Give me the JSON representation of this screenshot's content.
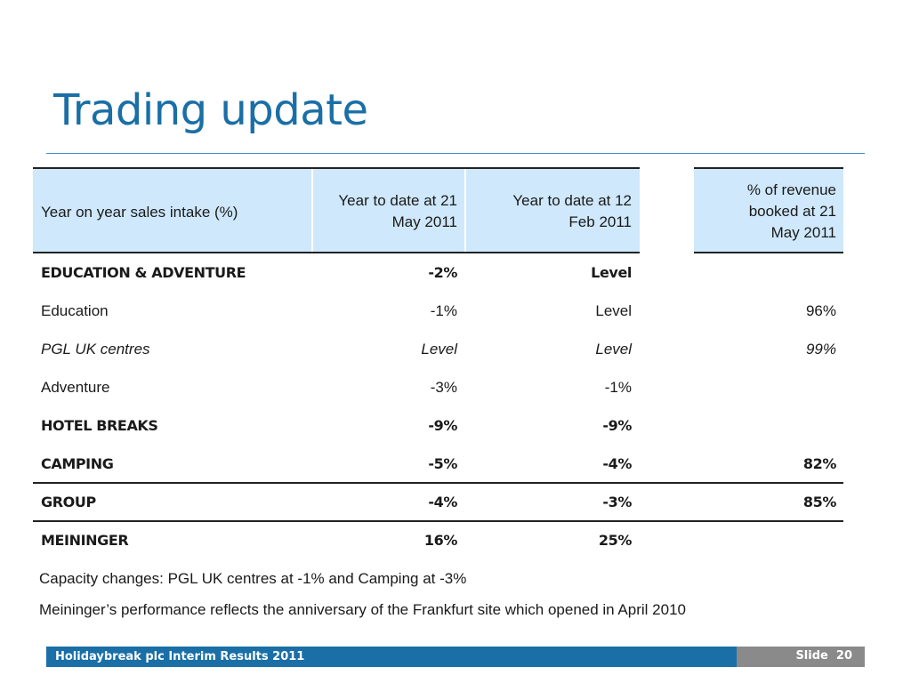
{
  "slide": {
    "title": "Trading update"
  },
  "table": {
    "headers": {
      "label": "Year on year sales intake (%)",
      "col1_line1": "Year to date at 21",
      "col1_line2": "May 2011",
      "col2_line1": "Year to date at 12",
      "col2_line2": "Feb 2011",
      "col3_line1": "% of revenue",
      "col3_line2": "booked at 21",
      "col3_line3": "May 2011"
    },
    "rows": [
      {
        "label": "EDUCATION & ADVENTURE",
        "c1": "-2%",
        "c2": "Level",
        "c3": ""
      },
      {
        "label": "Education",
        "c1": "-1%",
        "c2": "Level",
        "c3": "96%"
      },
      {
        "label": "PGL UK centres",
        "c1": "Level",
        "c2": "Level",
        "c3": "99%"
      },
      {
        "label": "Adventure",
        "c1": "-3%",
        "c2": "-1%",
        "c3": ""
      },
      {
        "label": "HOTEL BREAKS",
        "c1": "-9%",
        "c2": "-9%",
        "c3": ""
      },
      {
        "label": "CAMPING",
        "c1": "-5%",
        "c2": "-4%",
        "c3": "82%"
      },
      {
        "label": "GROUP",
        "c1": "-4%",
        "c2": "-3%",
        "c3": "85%"
      },
      {
        "label": "MEININGER",
        "c1": "16%",
        "c2": "25%",
        "c3": ""
      }
    ]
  },
  "notes": [
    "Capacity changes: PGL UK centres at -1% and Camping at -3%",
    "Meininger’s performance reflects the anniversary of the Frankfurt site which opened in April 2010"
  ],
  "footer": {
    "left_text": "Holidaybreak plc Interim Results 2011",
    "slide_label": "Slide",
    "slide_number": "20"
  }
}
